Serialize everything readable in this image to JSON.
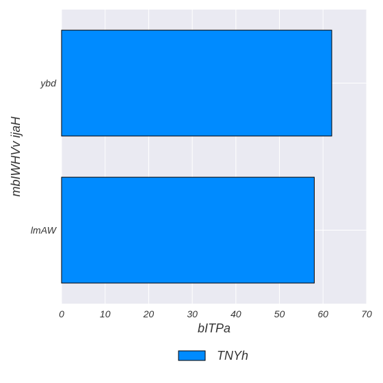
{
  "chart_data": {
    "type": "bar",
    "orientation": "horizontal",
    "categories": [
      "ybd",
      "lmAW"
    ],
    "series": [
      {
        "name": "TNYh",
        "values": [
          62,
          58
        ],
        "color": "#008bff"
      }
    ],
    "xlabel": "bITPa",
    "ylabel": "mbIWHVv ijaH",
    "xlim": [
      0,
      70
    ],
    "xticks": [
      "0",
      "10",
      "20",
      "30",
      "40",
      "50",
      "60",
      "70"
    ],
    "grid": true,
    "background": "#eaeaf2",
    "legend_position": "bottom-center"
  }
}
